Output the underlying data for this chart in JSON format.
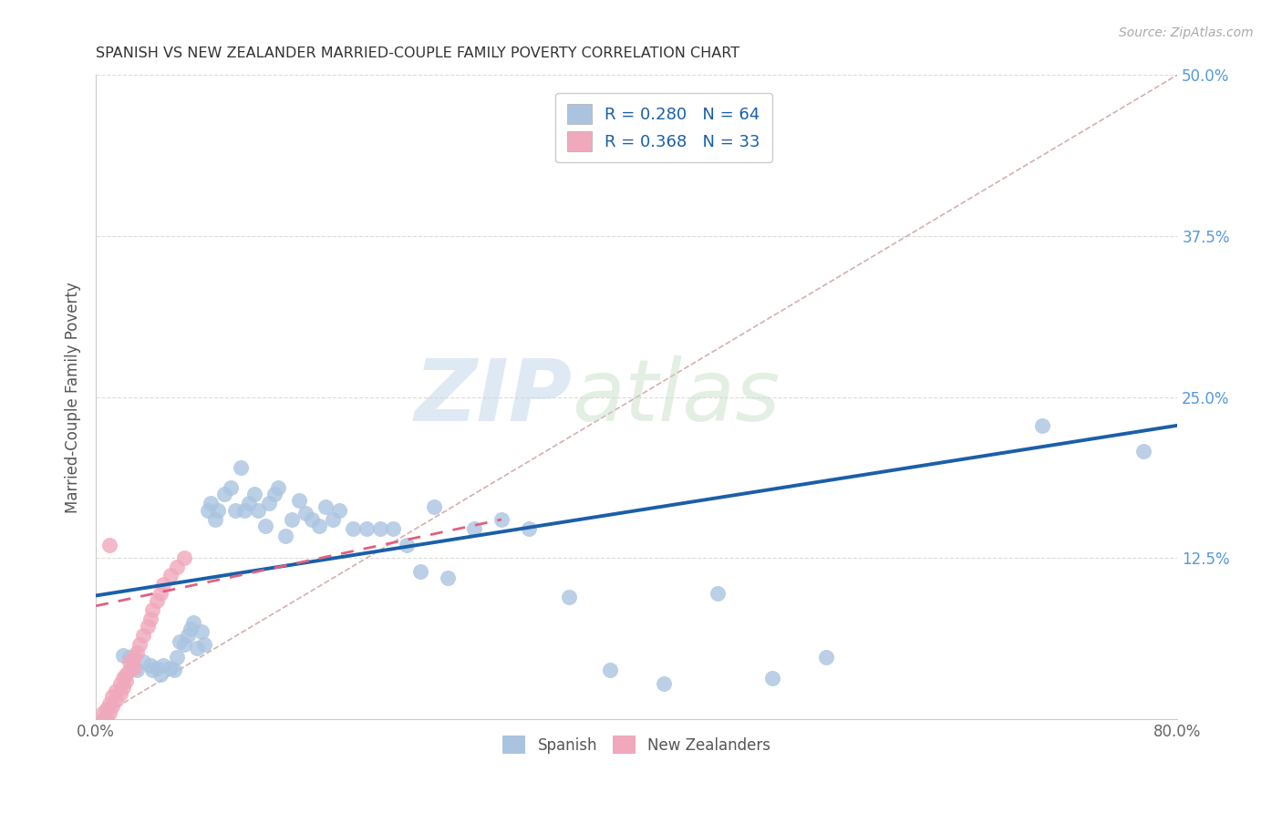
{
  "title": "SPANISH VS NEW ZEALANDER MARRIED-COUPLE FAMILY POVERTY CORRELATION CHART",
  "source": "Source: ZipAtlas.com",
  "ylabel": "Married-Couple Family Poverty",
  "watermark_zip": "ZIP",
  "watermark_atlas": "atlas",
  "xlim": [
    0.0,
    0.8
  ],
  "ylim": [
    0.0,
    0.5
  ],
  "blue_color": "#aac4e0",
  "pink_color": "#f0a8bc",
  "blue_line_color": "#1a5fa8",
  "pink_line_color": "#e06080",
  "diag_line_color": "#d0a0a0",
  "grid_color": "#d8d8d8",
  "title_color": "#333333",
  "source_color": "#aaaaaa",
  "axis_label_color": "#555555",
  "tick_color_right": "#5599dd",
  "legend_color": "#1a5fa8",
  "legend_R1": "R = 0.280",
  "legend_N1": "N = 64",
  "legend_R2": "R = 0.368",
  "legend_N2": "N = 33",
  "spanish_line_x0": 0.0,
  "spanish_line_y0": 0.096,
  "spanish_line_x1": 0.8,
  "spanish_line_y1": 0.228,
  "nz_line_x0": 0.0,
  "nz_line_y0": 0.088,
  "nz_line_x1": 0.3,
  "nz_line_y1": 0.155,
  "spanish_x": [
    0.02,
    0.025,
    0.03,
    0.035,
    0.04,
    0.042,
    0.045,
    0.048,
    0.05,
    0.055,
    0.058,
    0.06,
    0.062,
    0.065,
    0.068,
    0.07,
    0.072,
    0.075,
    0.078,
    0.08,
    0.083,
    0.085,
    0.088,
    0.09,
    0.095,
    0.1,
    0.103,
    0.107,
    0.11,
    0.113,
    0.117,
    0.12,
    0.125,
    0.128,
    0.132,
    0.135,
    0.14,
    0.145,
    0.15,
    0.155,
    0.16,
    0.165,
    0.17,
    0.175,
    0.18,
    0.19,
    0.2,
    0.21,
    0.22,
    0.23,
    0.24,
    0.25,
    0.26,
    0.28,
    0.3,
    0.32,
    0.35,
    0.38,
    0.42,
    0.46,
    0.5,
    0.54,
    0.7,
    0.775
  ],
  "spanish_y": [
    0.05,
    0.048,
    0.038,
    0.045,
    0.042,
    0.038,
    0.04,
    0.035,
    0.042,
    0.04,
    0.038,
    0.048,
    0.06,
    0.058,
    0.065,
    0.07,
    0.075,
    0.055,
    0.068,
    0.058,
    0.162,
    0.168,
    0.155,
    0.162,
    0.175,
    0.18,
    0.162,
    0.195,
    0.162,
    0.168,
    0.175,
    0.162,
    0.15,
    0.168,
    0.175,
    0.18,
    0.142,
    0.155,
    0.17,
    0.16,
    0.155,
    0.15,
    0.165,
    0.155,
    0.162,
    0.148,
    0.148,
    0.148,
    0.148,
    0.135,
    0.115,
    0.165,
    0.11,
    0.148,
    0.155,
    0.148,
    0.095,
    0.038,
    0.028,
    0.098,
    0.032,
    0.048,
    0.228,
    0.208
  ],
  "nz_x": [
    0.005,
    0.005,
    0.008,
    0.008,
    0.01,
    0.01,
    0.012,
    0.012,
    0.015,
    0.015,
    0.018,
    0.018,
    0.02,
    0.02,
    0.022,
    0.022,
    0.025,
    0.025,
    0.028,
    0.028,
    0.03,
    0.032,
    0.035,
    0.038,
    0.04,
    0.042,
    0.045,
    0.048,
    0.05,
    0.055,
    0.06,
    0.065,
    0.01
  ],
  "nz_y": [
    0.0,
    0.005,
    0.0,
    0.008,
    0.005,
    0.012,
    0.01,
    0.018,
    0.015,
    0.022,
    0.02,
    0.028,
    0.025,
    0.032,
    0.03,
    0.035,
    0.038,
    0.045,
    0.04,
    0.048,
    0.052,
    0.058,
    0.065,
    0.072,
    0.078,
    0.085,
    0.092,
    0.098,
    0.105,
    0.112,
    0.118,
    0.125,
    0.135
  ]
}
